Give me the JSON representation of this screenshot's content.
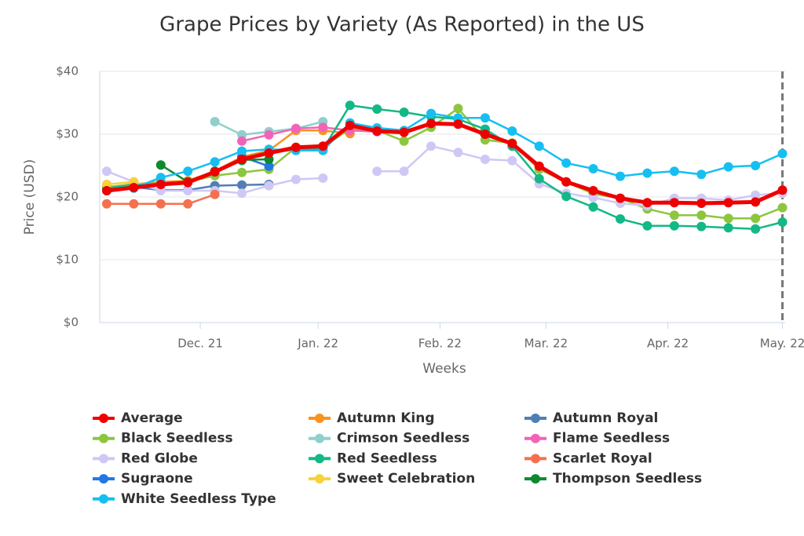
{
  "chart_data": {
    "type": "line",
    "title": "Grape Prices by Variety (As Reported) in the US",
    "x_label": "Weeks",
    "y_label": "Price (USD)",
    "x": [
      0,
      1,
      2,
      3,
      4,
      5,
      6,
      7,
      8,
      9,
      10,
      11,
      12,
      13,
      14,
      15,
      16,
      17,
      18,
      19,
      20,
      21,
      22,
      23,
      24,
      25
    ],
    "xlim": [
      -0.26,
      25.1
    ],
    "xticks": [
      {
        "value": 3.46,
        "label": "Dec. 21"
      },
      {
        "value": 7.82,
        "label": "Jan. 22"
      },
      {
        "value": 12.33,
        "label": "Feb. 22"
      },
      {
        "value": 16.25,
        "label": "Mar. 22"
      },
      {
        "value": 20.76,
        "label": "Apr. 22"
      },
      {
        "value": 25,
        "label": "May. 22"
      }
    ],
    "ylim": [
      0,
      40
    ],
    "yticks": [
      {
        "value": 0,
        "label": "$0"
      },
      {
        "value": 10,
        "label": "$10"
      },
      {
        "value": 20,
        "label": "$20"
      },
      {
        "value": 30,
        "label": "$30"
      },
      {
        "value": 40,
        "label": "$40"
      }
    ],
    "grid": true,
    "vertical_line_x": 25,
    "series": [
      {
        "name": "Average",
        "color": "#ee0000",
        "values": [
          21,
          21.5,
          22,
          22.3,
          24,
          26,
          27,
          27.9,
          28.1,
          31.4,
          30.5,
          30.3,
          31.7,
          31.6,
          30,
          28.5,
          24.9,
          22.4,
          21,
          19.8,
          19.1,
          19.1,
          19,
          19.1,
          19.2,
          21.1
        ]
      },
      {
        "name": "Autumn King",
        "color": "#f7941d",
        "values": [
          21.6,
          22,
          22.4,
          22.6,
          24.1,
          26.4,
          27.4,
          30.6,
          30.6,
          30.1,
          null,
          null,
          null,
          null,
          null,
          null,
          null,
          null,
          null,
          null,
          null,
          null,
          null,
          null,
          null,
          null
        ]
      },
      {
        "name": "Autumn Royal",
        "color": "#4f7fb5",
        "values": [
          21.1,
          21.6,
          21.1,
          21.1,
          21.8,
          21.9,
          22,
          null,
          null,
          null,
          null,
          null,
          null,
          null,
          null,
          null,
          null,
          null,
          null,
          null,
          null,
          null,
          null,
          null,
          null,
          null
        ]
      },
      {
        "name": "Black Seedless",
        "color": "#8cc63f",
        "values": [
          21.5,
          22.1,
          22.2,
          22.4,
          23.4,
          23.9,
          24.4,
          27.9,
          27.9,
          30.9,
          30.6,
          28.9,
          31.1,
          34.1,
          29.1,
          28.6,
          24.4,
          22.4,
          20.5,
          19.8,
          18.1,
          17.1,
          17.1,
          16.6,
          16.6,
          18.3
        ]
      },
      {
        "name": "Crimson Seedless",
        "color": "#8fd0cc",
        "values": [
          null,
          null,
          null,
          null,
          32,
          29.9,
          30.4,
          30.9,
          32,
          null,
          null,
          null,
          null,
          null,
          null,
          null,
          null,
          null,
          null,
          null,
          null,
          null,
          null,
          null,
          null,
          null
        ]
      },
      {
        "name": "Flame Seedless",
        "color": "#f263b8",
        "values": [
          null,
          null,
          null,
          null,
          null,
          28.9,
          29.9,
          30.9,
          31.1,
          30.6,
          30.4,
          null,
          null,
          null,
          null,
          null,
          null,
          null,
          null,
          null,
          null,
          null,
          null,
          null,
          null,
          null
        ]
      },
      {
        "name": "Red Globe",
        "color": "#cfc8f5",
        "values": [
          24.1,
          22.4,
          21,
          21,
          21,
          20.6,
          21.8,
          22.8,
          23,
          null,
          24.1,
          24.1,
          28.1,
          27.1,
          26,
          25.8,
          22.1,
          20.6,
          19.9,
          19,
          18.6,
          19.8,
          19.8,
          19.5,
          20.3,
          20.6
        ]
      },
      {
        "name": "Red Seedless",
        "color": "#12b886",
        "values": [
          21.4,
          21.9,
          22.1,
          22.4,
          24.1,
          25.8,
          27,
          27.6,
          27.6,
          34.6,
          34,
          33.5,
          32.8,
          32.4,
          30.8,
          28.1,
          22.9,
          20.1,
          18.4,
          16.5,
          15.4,
          15.4,
          15.3,
          15.1,
          14.9,
          16
        ]
      },
      {
        "name": "Scarlet Royal",
        "color": "#f4714f",
        "values": [
          18.9,
          18.9,
          18.9,
          18.9,
          20.4,
          null,
          null,
          null,
          null,
          null,
          null,
          null,
          null,
          null,
          null,
          null,
          null,
          null,
          null,
          null,
          null,
          null,
          null,
          null,
          null,
          null
        ]
      },
      {
        "name": "Sugraone",
        "color": "#1f77e8",
        "values": [
          null,
          null,
          null,
          null,
          null,
          26.4,
          24.9,
          null,
          null,
          null,
          null,
          null,
          null,
          null,
          null,
          null,
          null,
          null,
          null,
          null,
          null,
          null,
          null,
          null,
          null,
          null
        ]
      },
      {
        "name": "Sweet Celebration",
        "color": "#f9d139",
        "values": [
          22,
          22.4,
          null,
          null,
          null,
          null,
          null,
          null,
          null,
          null,
          null,
          null,
          null,
          null,
          null,
          null,
          null,
          null,
          null,
          null,
          null,
          null,
          null,
          null,
          null,
          null
        ]
      },
      {
        "name": "Thompson Seedless",
        "color": "#0d8a2f",
        "values": [
          null,
          null,
          25.1,
          22.4,
          24.1,
          25.9,
          26,
          null,
          null,
          null,
          null,
          null,
          null,
          null,
          null,
          null,
          null,
          null,
          null,
          null,
          null,
          null,
          null,
          null,
          null,
          null
        ]
      },
      {
        "name": "White Seedless Type",
        "color": "#16bff2",
        "values": [
          21,
          21.4,
          23.1,
          24.1,
          25.6,
          27.3,
          27.6,
          27.4,
          27.4,
          31.8,
          31,
          30.6,
          33.3,
          32.6,
          32.6,
          30.5,
          28.1,
          25.4,
          24.5,
          23.3,
          23.8,
          24.1,
          23.6,
          24.8,
          25,
          26.9
        ]
      }
    ]
  }
}
